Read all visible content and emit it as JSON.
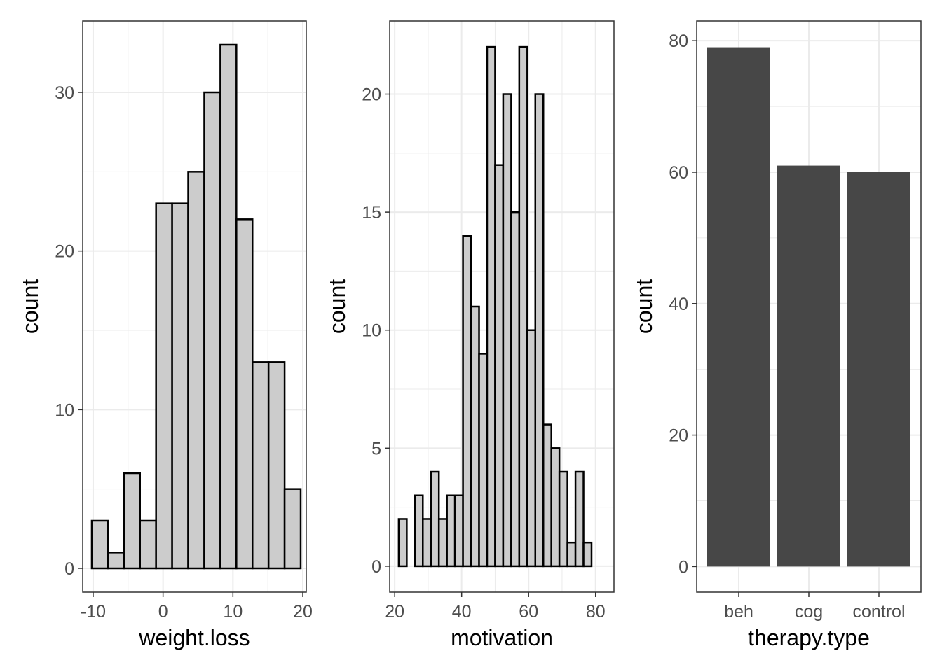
{
  "chart_data": [
    {
      "type": "bar",
      "subtype": "histogram",
      "xlabel": "weight.loss",
      "ylabel": "count",
      "xlim": [
        -11.5,
        20.5
      ],
      "ylim": [
        -1.5,
        34.5
      ],
      "x_ticks": [
        -10,
        0,
        10,
        20
      ],
      "x_tick_labels": [
        "-10",
        "0",
        "10",
        "20"
      ],
      "y_ticks": [
        0,
        10,
        20,
        30
      ],
      "y_tick_labels": [
        "0",
        "10",
        "20",
        "30"
      ],
      "bin_width": 2.3,
      "bin_start": -10.2,
      "values": [
        3,
        1,
        6,
        3,
        23,
        23,
        25,
        30,
        33,
        22,
        13,
        13,
        5
      ],
      "grid": true,
      "bar_fill": "#cccccc",
      "bar_stroke": "#000000"
    },
    {
      "type": "bar",
      "subtype": "histogram",
      "xlabel": "motivation",
      "ylabel": "count",
      "xlim": [
        18.5,
        85.5
      ],
      "ylim": [
        -1.1,
        23.1
      ],
      "x_ticks": [
        20,
        40,
        60,
        80
      ],
      "x_tick_labels": [
        "20",
        "40",
        "60",
        "80"
      ],
      "y_ticks": [
        0,
        5,
        10,
        15,
        20
      ],
      "y_tick_labels": [
        "0",
        "5",
        "10",
        "15",
        "20"
      ],
      "bin_width": 2.4,
      "bin_start": 21.2,
      "values": [
        2,
        0,
        3,
        2,
        4,
        2,
        3,
        3,
        14,
        11,
        9,
        22,
        17,
        20,
        15,
        22,
        10,
        20,
        6,
        5,
        4,
        1,
        4,
        1
      ],
      "grid": true,
      "bar_fill": "#cccccc",
      "bar_stroke": "#000000"
    },
    {
      "type": "bar",
      "xlabel": "therapy.type",
      "ylabel": "count",
      "categories": [
        "beh",
        "cog",
        "control"
      ],
      "values": [
        79,
        61,
        60
      ],
      "ylim": [
        -3.9,
        83
      ],
      "y_ticks": [
        0,
        20,
        40,
        60,
        80
      ],
      "y_tick_labels": [
        "0",
        "20",
        "40",
        "60",
        "80"
      ],
      "grid": true,
      "bar_fill": "#474747"
    }
  ],
  "colors": {
    "grid": "#ebebeb",
    "border": "#333333",
    "tick_label": "#4d4d4d",
    "axis_title": "#000000"
  }
}
